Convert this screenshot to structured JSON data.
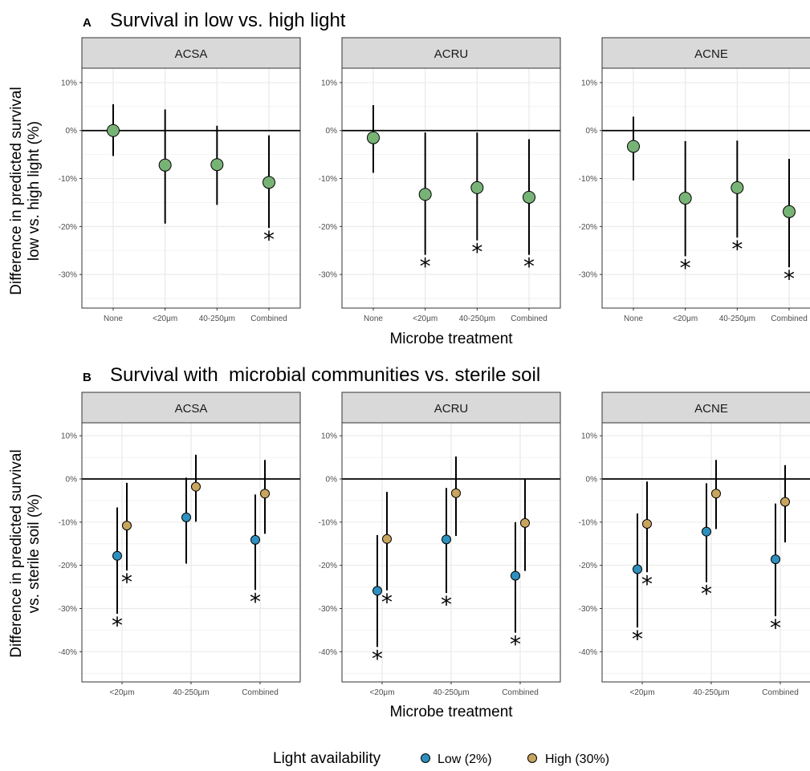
{
  "panel_a": {
    "letter": "A",
    "title": "Survival in low vs. high light",
    "ylabel_line1": "Difference in predicted survival",
    "ylabel_line2": "low vs. high light (%)",
    "xlabel": "Microbe treatment"
  },
  "panel_b": {
    "letter": "B",
    "title": "Survival with  microbial communities vs. sterile soil",
    "ylabel_line1": "Difference in predicted survival",
    "ylabel_line2": "vs. sterile soil (%)",
    "xlabel": "Microbe treatment"
  },
  "legend": {
    "title": "Light availability",
    "items": [
      {
        "label": "Low (2%)",
        "color": "#2e90bf"
      },
      {
        "label": "High (30%)",
        "color": "#c8a45e"
      }
    ]
  },
  "colors": {
    "single_point": "#78b376",
    "strip_bg": "#d9d9d9",
    "grid": "#ebebeb"
  },
  "chart_data": [
    {
      "type": "scatter",
      "panel": "A",
      "facets": [
        "ACSA",
        "ACRU",
        "ACNE"
      ],
      "categories": [
        "None",
        "<20μm",
        "40-250μm",
        "Combined"
      ],
      "ylim": [
        -37,
        13
      ],
      "yticks": [
        10,
        0,
        -10,
        -20,
        -30
      ],
      "ytick_labels": [
        "10%",
        "0%",
        "-10%",
        "-20%",
        "-30%"
      ],
      "xlabel": "Microbe treatment",
      "ylabel": "Difference in predicted survival low vs. high light (%)",
      "series": [
        {
          "values": {
            "ACSA": [
              0,
              -7.2,
              -7.1,
              -10.8
            ],
            "ACRU": [
              -1.5,
              -13.3,
              -11.9,
              -13.9
            ],
            "ACNE": [
              -3.3,
              -14.1,
              -11.9,
              -16.9
            ]
          },
          "lower": {
            "ACSA": [
              -5.3,
              -19.4,
              -15.5,
              -20.3
            ],
            "ACRU": [
              -8.8,
              -25.9,
              -22.9,
              -25.9
            ],
            "ACNE": [
              -10.4,
              -26.2,
              -22.3,
              -28.5
            ]
          },
          "upper": {
            "ACSA": [
              5.5,
              4.4,
              1.0,
              -1.0
            ],
            "ACRU": [
              5.3,
              -0.4,
              -0.4,
              -1.8
            ],
            "ACNE": [
              2.9,
              -2.2,
              -2.1,
              -5.9
            ]
          },
          "significant": {
            "ACSA": [
              false,
              false,
              false,
              true
            ],
            "ACRU": [
              false,
              true,
              true,
              true
            ],
            "ACNE": [
              false,
              true,
              true,
              true
            ]
          }
        }
      ]
    },
    {
      "type": "scatter",
      "panel": "B",
      "facets": [
        "ACSA",
        "ACRU",
        "ACNE"
      ],
      "categories": [
        "<20μm",
        "40-250μm",
        "Combined"
      ],
      "ylim": [
        -47,
        13
      ],
      "yticks": [
        10,
        0,
        -10,
        -20,
        -30,
        -40
      ],
      "ytick_labels": [
        "10%",
        "0%",
        "-10%",
        "-20%",
        "-30%",
        "-40%"
      ],
      "xlabel": "Microbe treatment",
      "ylabel": "Difference in predicted survival vs. sterile soil (%)",
      "series": [
        {
          "name": "Low (2%)",
          "values": {
            "ACSA": [
              -17.8,
              -8.9,
              -14.1
            ],
            "ACRU": [
              -25.9,
              -14.0,
              -22.4
            ],
            "ACNE": [
              -20.9,
              -12.2,
              -18.6
            ]
          },
          "lower": {
            "ACSA": [
              -31.2,
              -19.6,
              -25.7
            ],
            "ACRU": [
              -38.9,
              -26.4,
              -35.6
            ],
            "ACNE": [
              -34.4,
              -23.9,
              -31.8
            ]
          },
          "upper": {
            "ACSA": [
              -6.6,
              0.3,
              -3.6
            ],
            "ACRU": [
              -13.0,
              -2.1,
              -10.0
            ],
            "ACNE": [
              -8.0,
              -1.0,
              -5.7
            ]
          },
          "significant": {
            "ACSA": [
              true,
              false,
              true
            ],
            "ACRU": [
              true,
              true,
              true
            ],
            "ACNE": [
              true,
              true,
              true
            ]
          }
        },
        {
          "name": "High (30%)",
          "values": {
            "ACSA": [
              -10.8,
              -1.8,
              -3.4
            ],
            "ACRU": [
              -13.9,
              -3.3,
              -10.2
            ],
            "ACNE": [
              -10.4,
              -3.4,
              -5.3
            ]
          },
          "lower": {
            "ACSA": [
              -21.2,
              -9.9,
              -12.7
            ],
            "ACRU": [
              -25.8,
              -13.2,
              -21.3
            ],
            "ACNE": [
              -21.6,
              -11.6,
              -14.7
            ]
          },
          "upper": {
            "ACSA": [
              -0.9,
              5.6,
              4.4
            ],
            "ACRU": [
              -3.0,
              5.2,
              -0.1
            ],
            "ACNE": [
              -0.6,
              4.4,
              3.2
            ]
          },
          "significant": {
            "ACSA": [
              true,
              false,
              false
            ],
            "ACRU": [
              true,
              false,
              false
            ],
            "ACNE": [
              true,
              false,
              false
            ]
          }
        }
      ]
    }
  ]
}
